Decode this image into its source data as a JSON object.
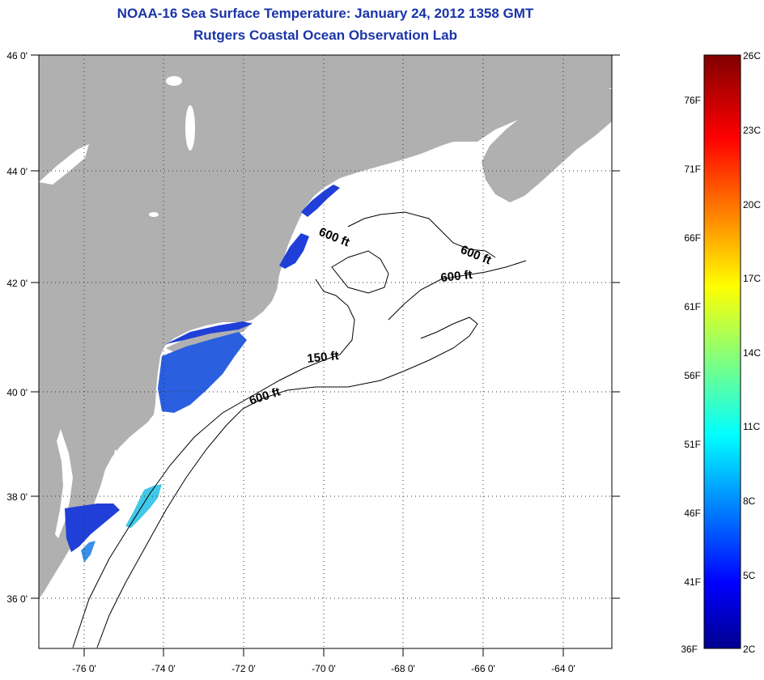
{
  "header": {
    "title": "NOAA-16 Sea Surface Temperature:  January 24, 2012 1358 GMT",
    "subtitle": "Rutgers Coastal Ocean Observation Lab"
  },
  "map": {
    "lat_labels": [
      "46 0'",
      "44 0'",
      "42 0'",
      "40 0'",
      "38 0'",
      "36 0'"
    ],
    "lon_labels": [
      "-76 0'",
      "-74 0'",
      "-72 0'",
      "-70 0'",
      "-68 0'",
      "-66 0'",
      "-64 0'"
    ],
    "contour_labels": [
      "600 ft",
      "600 ft",
      "600 ft",
      "150 ft",
      "600 ft"
    ],
    "colors": {
      "land": "#b0b0b0",
      "ocean": "#ffffff",
      "sst_cold": "#1f3fd8",
      "sst_mid": "#2a8fe0",
      "sst_light": "#40c8e8"
    }
  },
  "colorbar": {
    "celsius_labels": [
      "26C",
      "23C",
      "20C",
      "17C",
      "14C",
      "11C",
      "8C",
      "5C",
      "2C"
    ],
    "fahrenheit_labels": [
      "76F",
      "71F",
      "66F",
      "61F",
      "56F",
      "51F",
      "46F",
      "41F",
      "36F"
    ],
    "colormap": "jet"
  }
}
